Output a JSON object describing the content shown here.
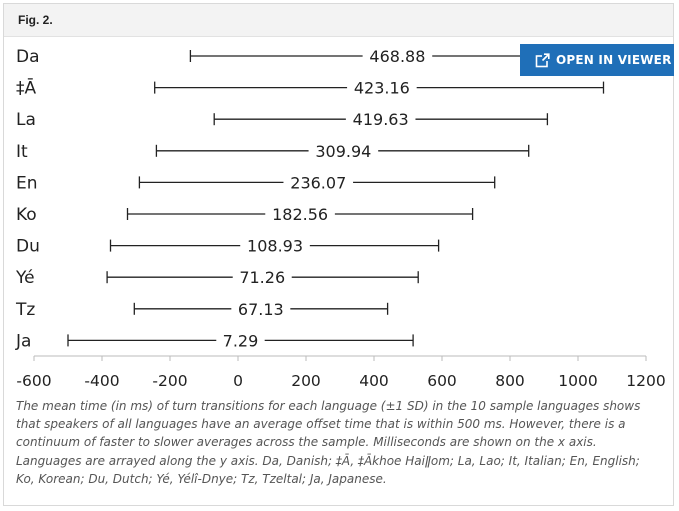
{
  "figure": {
    "label": "Fig. 2.",
    "viewer_button": {
      "label": "OPEN IN VIEWER",
      "icon": "external-link-icon"
    },
    "caption": "The mean time (in ms) of turn transitions for each language (±1 SD) in the 10 sample languages shows that speakers of all languages have an average offset time that is within 500 ms. However, there is a continuum of faster to slower averages across the sample. Milliseconds are shown on the x axis. Languages are arrayed along the y axis. Da, Danish; ‡Ā, ‡Ākhoe Haiǁom; La, Lao; It, Italian; En, English; Ko, Korean; Du, Dutch; Yé, Yélî-Dnye; Tz, Tzeltal; Ja, Japanese."
  },
  "chart_data": {
    "type": "errorbar",
    "title": "",
    "xlabel": "",
    "ylabel": "",
    "xlim": [
      -600,
      1200
    ],
    "xticks": [
      -600,
      -400,
      -200,
      0,
      200,
      400,
      600,
      800,
      1000,
      1200
    ],
    "grid": false,
    "line_color": "#222222",
    "categories": [
      "Da",
      "‡Ā",
      "La",
      "It",
      "En",
      "Ko",
      "Du",
      "Yé",
      "Tz",
      "Ja"
    ],
    "means": [
      468.88,
      423.16,
      419.63,
      309.94,
      236.07,
      182.56,
      108.93,
      71.26,
      67.13,
      7.29
    ],
    "lower": [
      -140,
      -245,
      -70,
      -240,
      -290,
      -325,
      -375,
      -385,
      -305,
      -500
    ],
    "upper": [
      860,
      1075,
      910,
      855,
      755,
      690,
      590,
      530,
      440,
      515
    ]
  }
}
